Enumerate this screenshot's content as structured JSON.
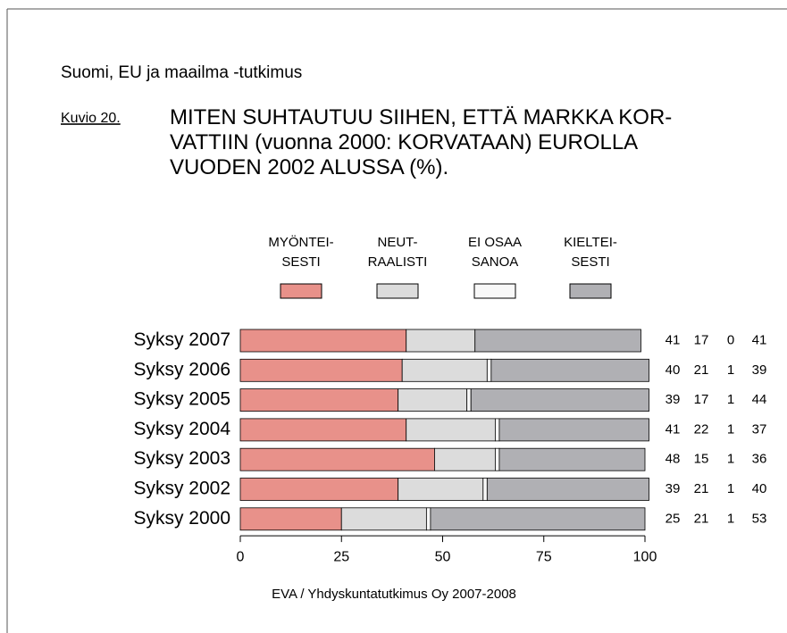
{
  "header": "Suomi, EU ja maailma -tutkimus",
  "figure_label": "Kuvio 20.",
  "chart_data": {
    "type": "stacked_barh",
    "title": "MITEN SUHTAUTUU SIIHEN, ETTÄ MARKKA KOR-\nVATTIIN (vuonna 2000: KORVATAAN)  EUROLLA\nVUODEN 2002 ALUSSA (%).",
    "categories": [
      "Syksy 2007",
      "Syksy 2006",
      "Syksy 2005",
      "Syksy 2004",
      "Syksy 2003",
      "Syksy 2002",
      "Syksy 2000"
    ],
    "series": [
      {
        "name": "MYÖNTEI-\nSESTI",
        "color": "#e8918a",
        "values": [
          41,
          40,
          39,
          41,
          48,
          39,
          25
        ]
      },
      {
        "name": "NEUT-\nRAALISTI",
        "color": "#dcdcdc",
        "values": [
          17,
          21,
          17,
          22,
          15,
          21,
          21
        ]
      },
      {
        "name": "EI OSAA\nSANOA",
        "color": "#f8f8f8",
        "values": [
          0,
          1,
          1,
          1,
          1,
          1,
          1
        ]
      },
      {
        "name": "KIELTEI-\nSESTI",
        "color": "#b0b0b4",
        "values": [
          41,
          39,
          44,
          37,
          36,
          40,
          53
        ]
      }
    ],
    "xlim": [
      0,
      100
    ],
    "xticks": [
      0,
      25,
      50,
      75,
      100
    ],
    "source": "EVA / Yhdyskuntatutkimus Oy 2007-2008"
  }
}
